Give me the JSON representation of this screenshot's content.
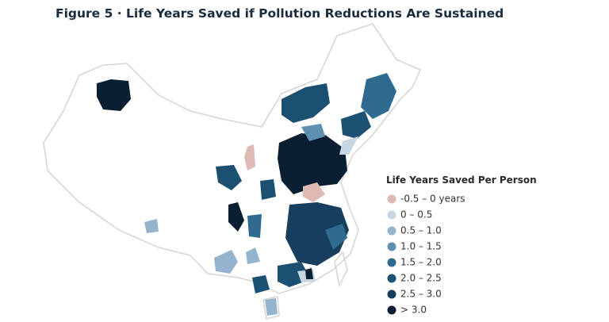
{
  "title": "Figure 5 · Life Years Saved if Pollution Reductions Are Sustained",
  "legend": {
    "title": "Life Years Saved Per Person",
    "items": [
      {
        "label": "-0.5 – 0 years",
        "color": "#dfb9b3"
      },
      {
        "label": "0 – 0.5",
        "color": "#c6d6e3"
      },
      {
        "label": "0.5 – 1.0",
        "color": "#94b3cc"
      },
      {
        "label": "1.0 – 1.5",
        "color": "#6090b0"
      },
      {
        "label": "1.5 – 2.0",
        "color": "#2f6a8f"
      },
      {
        "label": "2.0 – 2.5",
        "color": "#1c5073"
      },
      {
        "label": "2.5 – 3.0",
        "color": "#173e5d"
      },
      {
        "label": "> 3.0",
        "color": "#0b1f33"
      }
    ]
  }
}
